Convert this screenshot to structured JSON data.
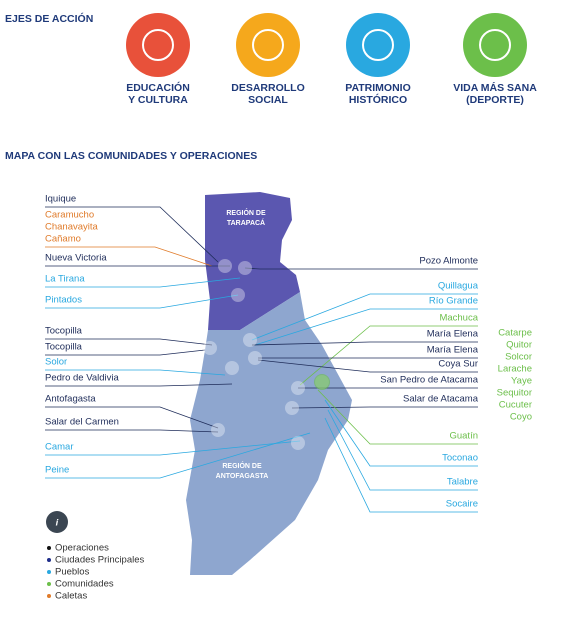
{
  "header": {
    "title": "EJES DE ACCIÓN"
  },
  "axes": [
    {
      "label": [
        "EDUCACIÓN",
        "Y CULTURA"
      ],
      "color": "#e8513a"
    },
    {
      "label": [
        "DESARROLLO",
        "SOCIAL"
      ],
      "color": "#f5a81c"
    },
    {
      "label": [
        "PATRIMONIO",
        "HISTÓRICO"
      ],
      "color": "#29a8e0"
    },
    {
      "label": [
        "VIDA MÁS SANA",
        "(DEPORTE)"
      ],
      "color": "#6cbf4a"
    }
  ],
  "map": {
    "title": "MAPA CON LAS COMUNIDADES Y OPERACIONES",
    "regions": [
      [
        "REGIÓN DE",
        "TARAPACÁ"
      ],
      [
        "REGIÓN DE",
        "ANTOFAGASTA"
      ]
    ],
    "left_labels": [
      {
        "text": "Iquique",
        "color": "#1f2d5a"
      },
      {
        "text": "Caramucho",
        "color": "#e07b2a"
      },
      {
        "text": "Chanavayita",
        "color": "#e07b2a"
      },
      {
        "text": "Cañamo",
        "color": "#e07b2a"
      },
      {
        "text": "Nueva Victoria",
        "color": "#1f2d5a"
      },
      {
        "text": "La Tirana",
        "color": "#29a8e0"
      },
      {
        "text": "Pintados",
        "color": "#29a8e0"
      },
      {
        "text": "Tocopilla",
        "color": "#1f2d5a"
      },
      {
        "text": "Tocopilla",
        "color": "#1f2d5a"
      },
      {
        "text": "Solor",
        "color": "#29a8e0"
      },
      {
        "text": "Pedro de Valdivia",
        "color": "#1f2d5a"
      },
      {
        "text": "Antofagasta",
        "color": "#1f2d5a"
      },
      {
        "text": "Salar del Carmen",
        "color": "#1f2d5a"
      },
      {
        "text": "Camar",
        "color": "#29a8e0"
      },
      {
        "text": "Peine",
        "color": "#29a8e0"
      }
    ],
    "right_labels": [
      {
        "text": "Pozo Almonte",
        "color": "#1f2d5a"
      },
      {
        "text": "Quillagua",
        "color": "#29a8e0"
      },
      {
        "text": "Río Grande",
        "color": "#29a8e0"
      },
      {
        "text": "Machuca",
        "color": "#6cbf4a"
      },
      {
        "text": "María Elena",
        "color": "#1f2d5a"
      },
      {
        "text": "María Elena",
        "color": "#1f2d5a"
      },
      {
        "text": "Coya Sur",
        "color": "#1f2d5a"
      },
      {
        "text": "San Pedro de Atacama",
        "color": "#1f2d5a"
      },
      {
        "text": "Salar de Atacama",
        "color": "#1f2d5a"
      },
      {
        "text": "Guatín",
        "color": "#6cbf4a"
      },
      {
        "text": "Toconao",
        "color": "#29a8e0"
      },
      {
        "text": "Talabre",
        "color": "#29a8e0"
      },
      {
        "text": "Socaire",
        "color": "#29a8e0"
      }
    ],
    "communities": [
      "Catarpe",
      "Quitor",
      "Solcor",
      "Larache",
      "Yaye",
      "Sequitor",
      "Cucuter",
      "Coyo"
    ],
    "communities_color": "#6cbf4a"
  },
  "legend": {
    "icon": "i",
    "items": [
      {
        "text": "Operaciones",
        "color": "#111111"
      },
      {
        "text": "Ciudades Principales",
        "color": "#1f2d8a"
      },
      {
        "text": "Pueblos",
        "color": "#29a8e0"
      },
      {
        "text": "Comunidades",
        "color": "#6cbf4a"
      },
      {
        "text": "Caletas",
        "color": "#e07b2a"
      }
    ]
  }
}
